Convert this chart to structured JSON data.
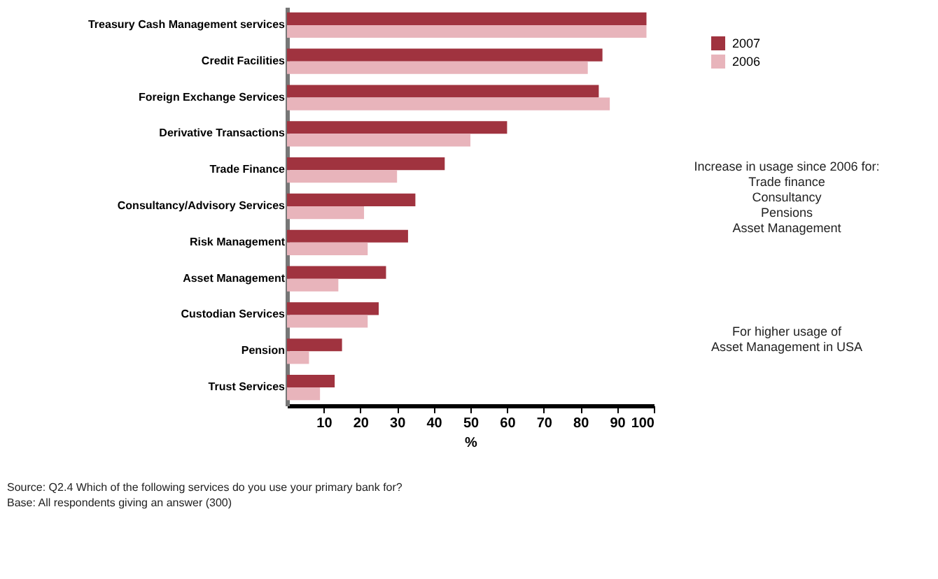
{
  "chart_data": {
    "type": "bar",
    "orientation": "horizontal",
    "categories": [
      "Treasury Cash Management services",
      "Credit Facilities",
      "Foreign Exchange Services",
      "Derivative Transactions",
      "Trade Finance",
      "Consultancy/Advisory Services",
      "Risk Management",
      "Asset Management",
      "Custodian Services",
      "Pension",
      "Trust Services"
    ],
    "series": [
      {
        "name": "2007",
        "color": "#a0333f",
        "values": [
          98,
          86,
          85,
          60,
          43,
          35,
          33,
          27,
          25,
          15,
          13
        ]
      },
      {
        "name": "2006",
        "color": "#e8b4bb",
        "values": [
          98,
          82,
          88,
          50,
          30,
          21,
          22,
          14,
          22,
          6,
          9
        ]
      }
    ],
    "xlim": [
      0,
      100
    ],
    "xticks": [
      10,
      20,
      30,
      40,
      50,
      60,
      70,
      80,
      90,
      100
    ],
    "xlabel": "%",
    "legend": "top right",
    "grid": false,
    "annotations": [
      "Increase in usage since 2006 for:\nTrade finance\nConsultancy\nPensions\nAsset Management",
      "For higher usage of\nAsset Management in USA",
      "Source: Q2.4 Which of the following services do you use your primary bank for?",
      "Base: All respondents giving an answer (300)"
    ]
  }
}
